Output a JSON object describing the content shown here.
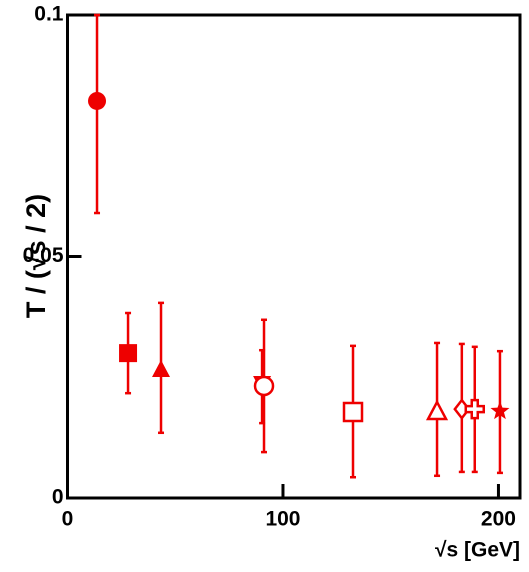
{
  "chart_data": {
    "type": "scatter",
    "x_label": "√s [GeV]",
    "y_label": "T / (√s / 2)",
    "color": "#ee0000",
    "x": [
      13.7,
      28.1,
      43.4,
      90.3,
      91.2,
      132.5,
      171.5,
      183,
      189,
      200.7
    ],
    "y": [
      0.0822,
      0.03,
      0.0265,
      0.0238,
      0.0232,
      0.0178,
      0.0178,
      0.0184,
      0.0184,
      0.018
    ],
    "yerr_low": [
      0.0232,
      0.0083,
      0.013,
      0.0083,
      0.0137,
      0.0135,
      0.0132,
      0.013,
      0.013,
      0.0128
    ],
    "yerr_high": [
      0.0178,
      0.0083,
      0.0139,
      0.0068,
      0.0137,
      0.0137,
      0.0143,
      0.0135,
      0.0129,
      0.0124
    ],
    "markers": [
      "circle",
      "square",
      "triangle",
      "triangle-down",
      "circle-open",
      "square-open",
      "triangle-open",
      "diamond-open",
      "cross-open",
      "star"
    ],
    "xlim": [
      0,
      210
    ],
    "ylim": [
      0,
      0.1
    ],
    "xticks": [
      0,
      100,
      200
    ],
    "yticks": [
      0,
      0.05,
      0.1
    ]
  }
}
